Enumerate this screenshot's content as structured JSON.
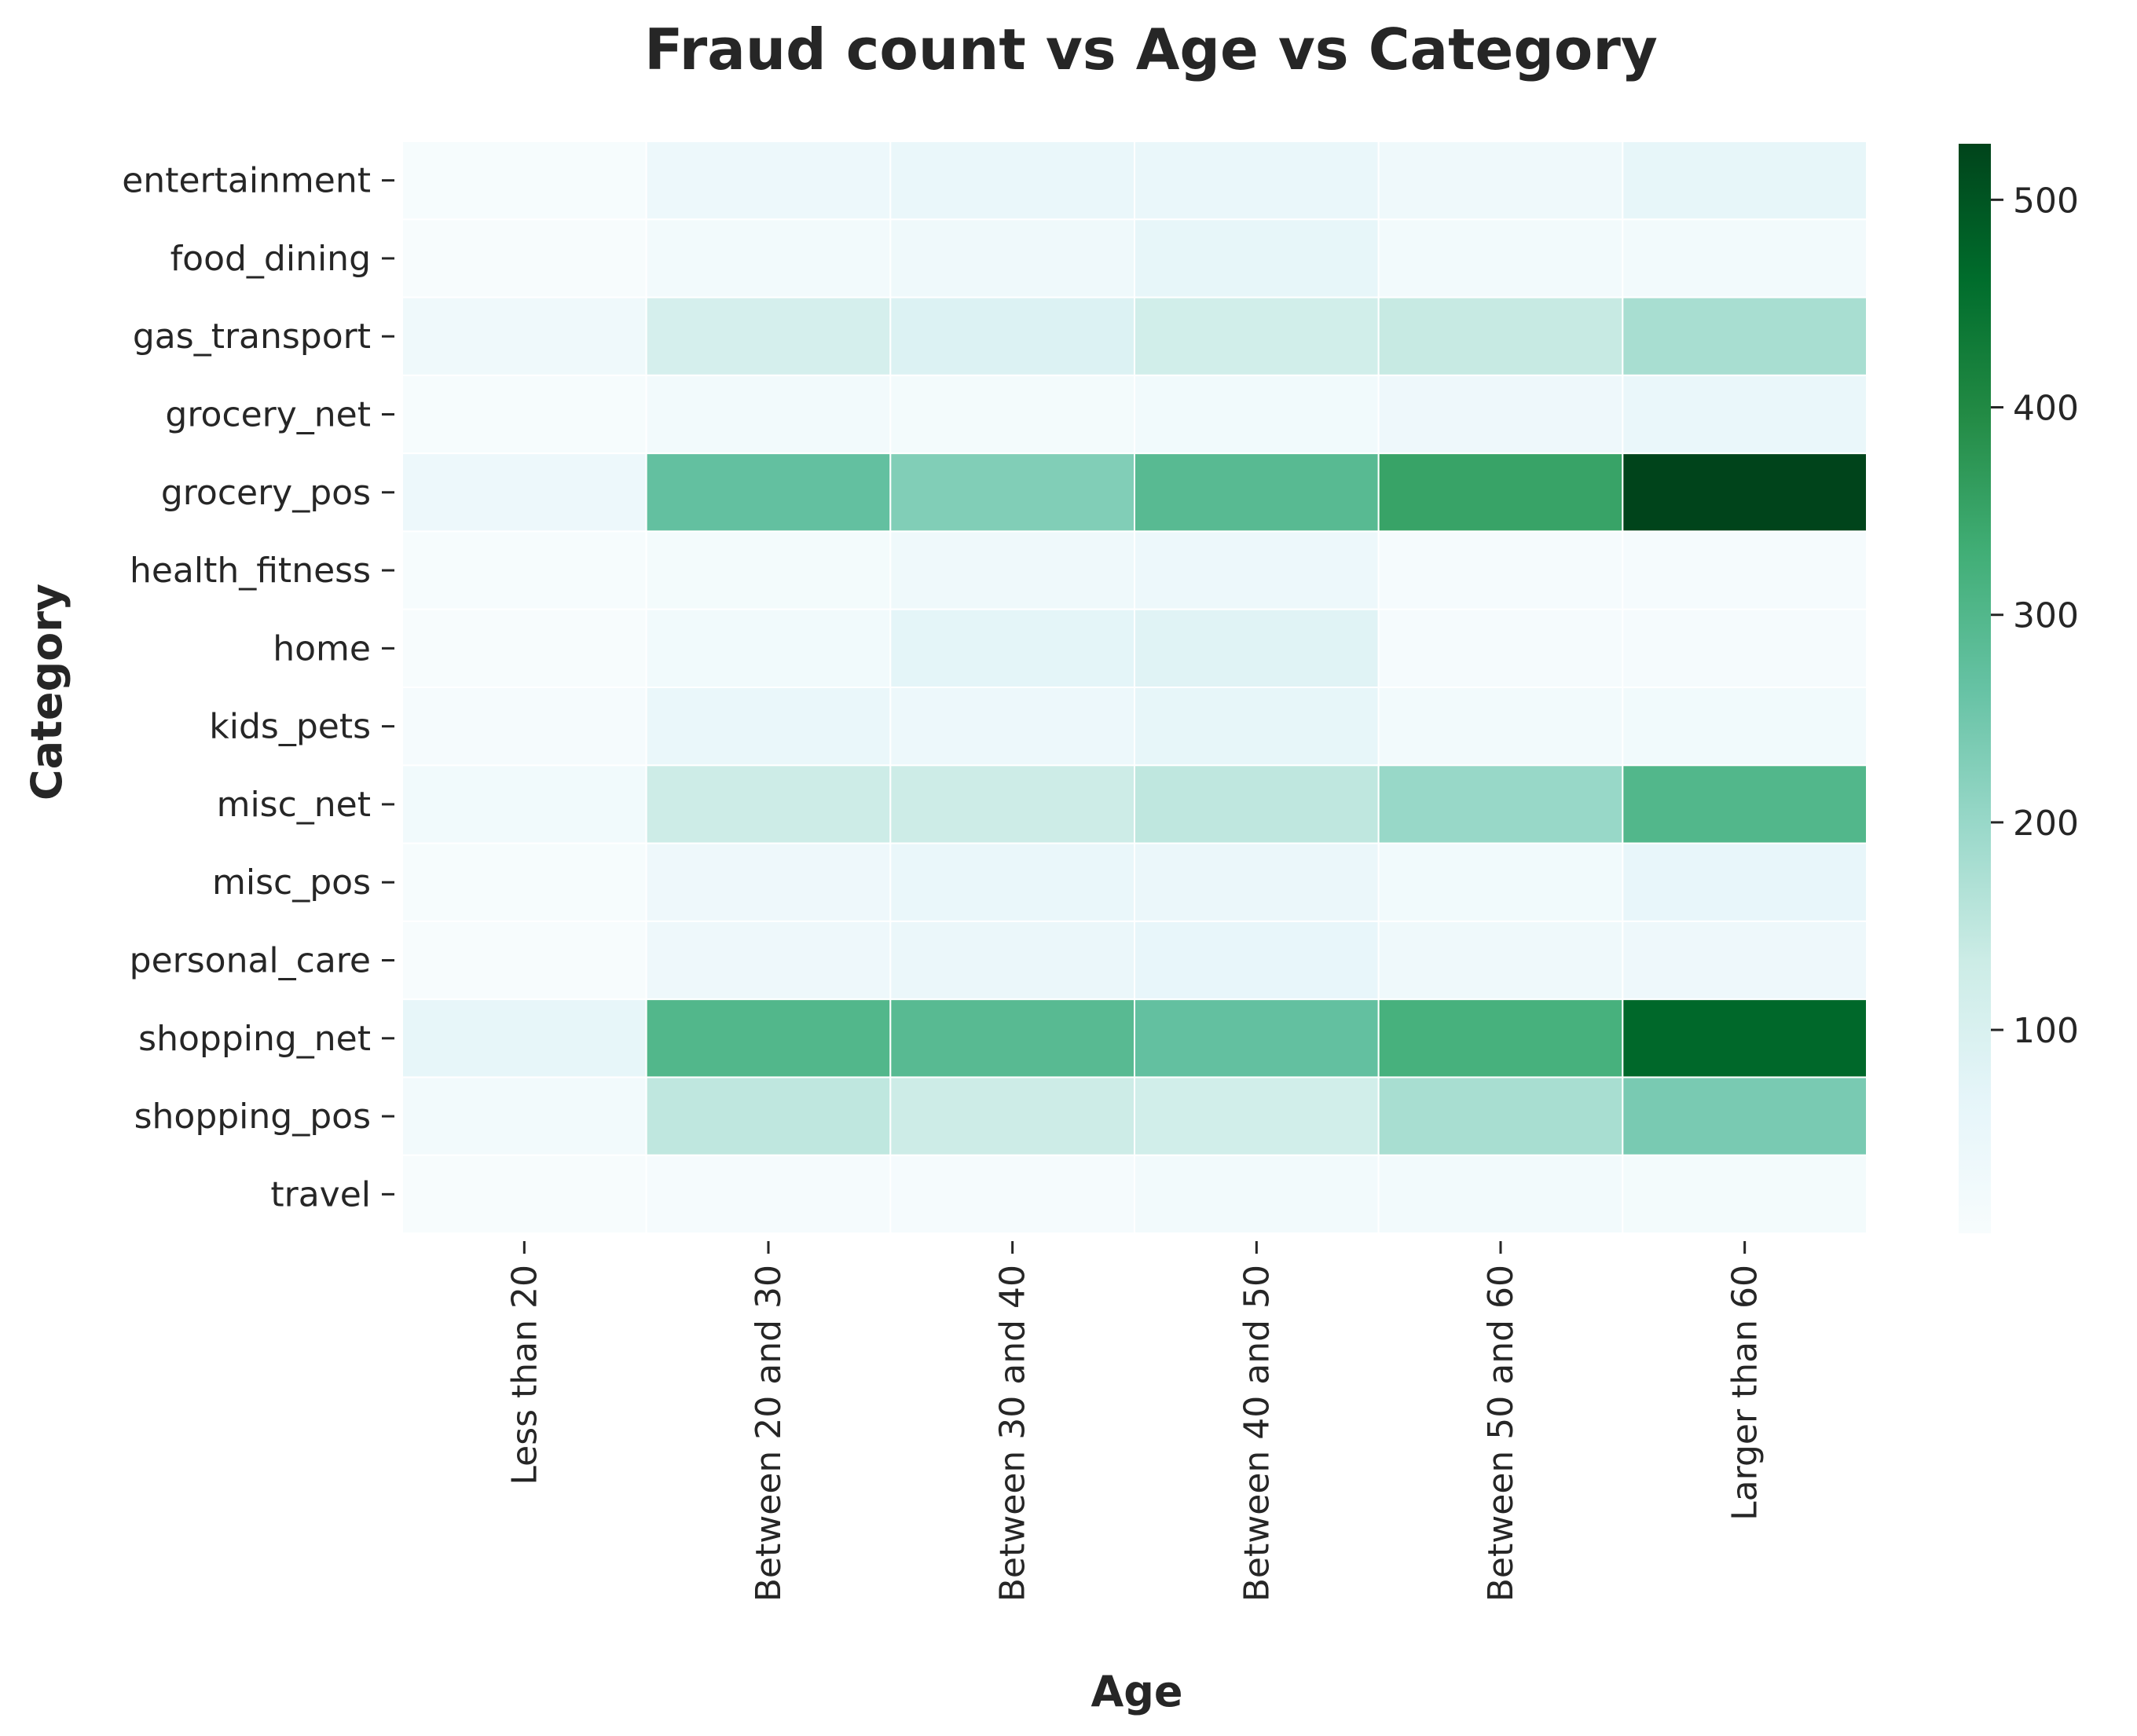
{
  "chart_data": {
    "type": "heatmap",
    "title": "Fraud count vs Age vs Category",
    "xlabel": "Age",
    "ylabel": "Category",
    "x_categories": [
      "Less than 20",
      "Between 20 and 30",
      "Between 30 and 40",
      "Between 40 and 50",
      "Between 50 and 60",
      "Larger than 60"
    ],
    "y_categories": [
      "entertainment",
      "food_dining",
      "gas_transport",
      "grocery_net",
      "grocery_pos",
      "health_fitness",
      "home",
      "kids_pets",
      "misc_net",
      "misc_pos",
      "personal_care",
      "shopping_net",
      "shopping_pos",
      "travel"
    ],
    "values": [
      [
        5,
        40,
        50,
        50,
        30,
        60
      ],
      [
        3,
        20,
        30,
        60,
        20,
        20
      ],
      [
        30,
        110,
        90,
        120,
        140,
        180
      ],
      [
        5,
        20,
        15,
        25,
        35,
        50
      ],
      [
        40,
        270,
        230,
        290,
        350,
        527
      ],
      [
        4,
        15,
        30,
        40,
        10,
        10
      ],
      [
        2,
        25,
        70,
        80,
        8,
        8
      ],
      [
        10,
        50,
        40,
        60,
        20,
        25
      ],
      [
        25,
        130,
        130,
        150,
        200,
        300
      ],
      [
        4,
        35,
        50,
        45,
        25,
        55
      ],
      [
        3,
        35,
        45,
        55,
        30,
        35
      ],
      [
        60,
        300,
        290,
        270,
        320,
        470
      ],
      [
        20,
        150,
        130,
        120,
        180,
        240
      ],
      [
        2,
        10,
        10,
        20,
        20,
        15
      ]
    ],
    "colorbar": {
      "min": 2,
      "max": 527,
      "ticks": [
        100,
        200,
        300,
        400,
        500
      ],
      "colormap": "BuGn",
      "stops": [
        "#f7fcfd",
        "#e5f5f9",
        "#ccece6",
        "#99d8c9",
        "#66c2a4",
        "#41ae76",
        "#238b45",
        "#006d2c",
        "#00441b"
      ]
    },
    "grid": false,
    "cell_border_color": "#ffffff"
  }
}
